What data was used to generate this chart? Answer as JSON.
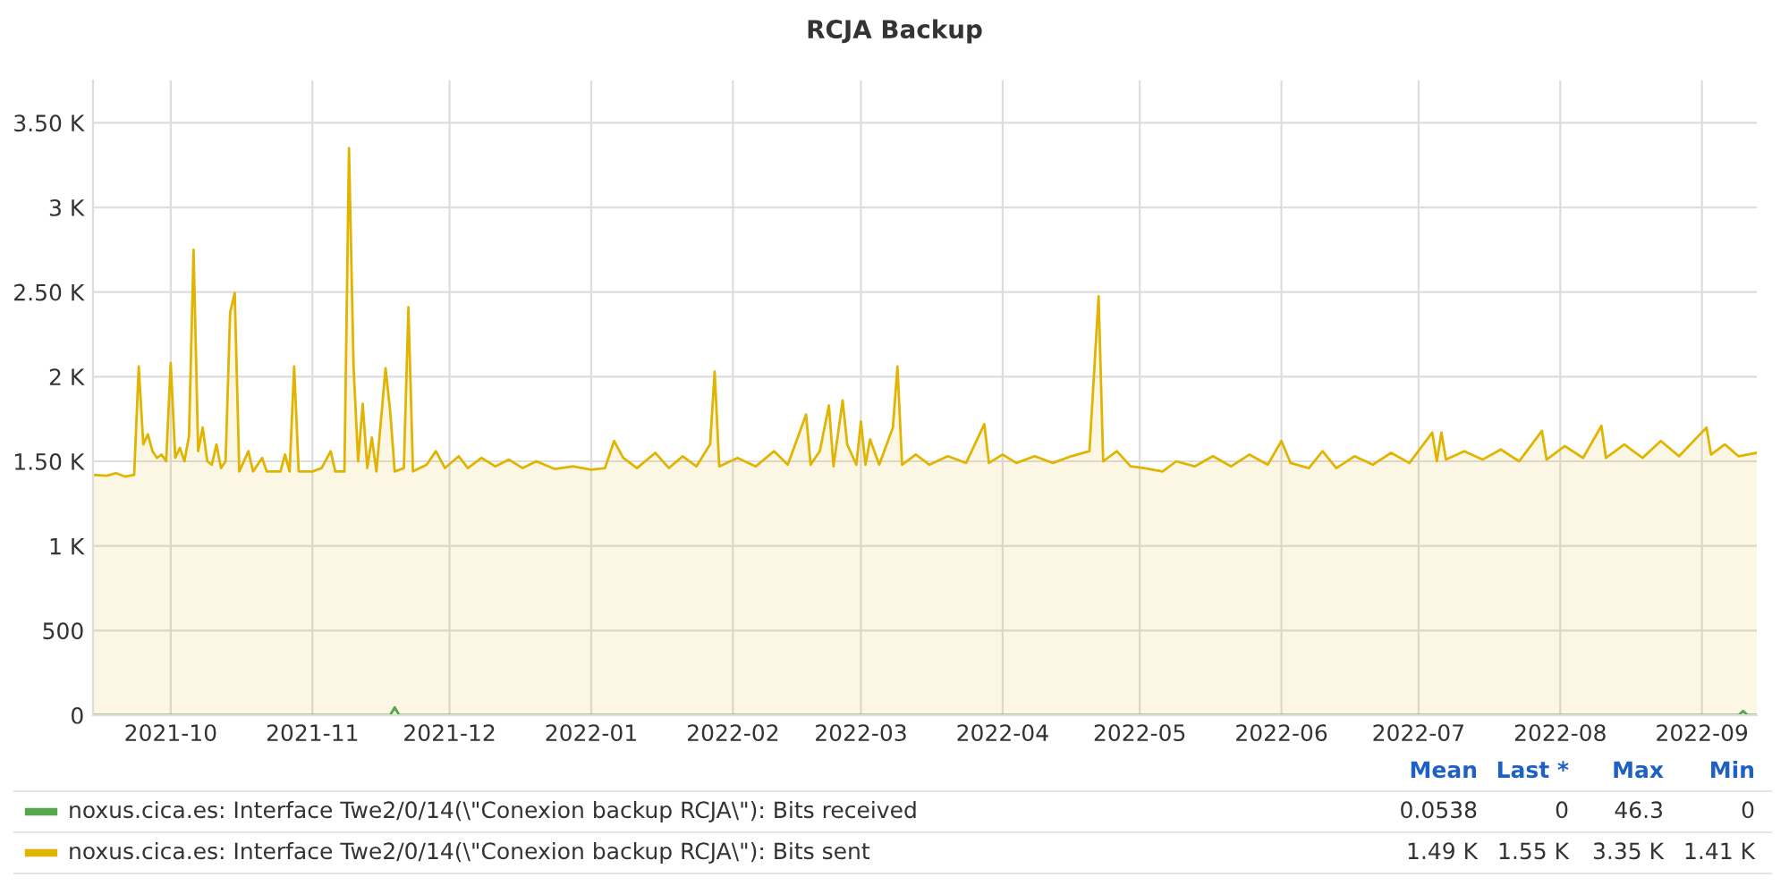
{
  "chart_data": {
    "type": "area",
    "title": "RCJA Backup",
    "xlim": [
      "2021-09-14",
      "2022-09-13"
    ],
    "xticks": [
      "2021-10",
      "2021-11",
      "2021-12",
      "2022-01",
      "2022-02",
      "2022-03",
      "2022-04",
      "2022-05",
      "2022-06",
      "2022-07",
      "2022-08",
      "2022-09"
    ],
    "ylim": [
      0,
      3750
    ],
    "yticks": [
      0,
      500,
      {
        "value": 1000,
        "label": "1 K"
      },
      {
        "value": 1500,
        "label": "1.50 K"
      },
      {
        "value": 2000,
        "label": "2 K"
      },
      {
        "value": 2500,
        "label": "2.50 K"
      },
      {
        "value": 3000,
        "label": "3 K"
      },
      {
        "value": 3500,
        "label": "3.50 K"
      }
    ],
    "grid": true,
    "legend": "bottom",
    "annotations": [
      "Mean",
      "Last *",
      "Max",
      "Min",
      "0.0538",
      "0",
      "46.3",
      "0",
      "1.49 K",
      "1.55 K",
      "3.35 K",
      "1.41 K"
    ],
    "series": [
      {
        "name": "noxus.cica.es: Interface Twe2/0/14(\\\"Conexion backup RCJA\\\"): Bits received",
        "color": "#56a64b",
        "x": [
          "2021-09-14",
          "2021-11-18",
          "2021-11-19",
          "2021-11-20",
          "2022-09-09",
          "2022-09-10",
          "2022-09-11",
          "2022-09-13"
        ],
        "values": [
          0,
          0,
          46.3,
          0,
          0,
          25,
          0,
          0
        ]
      },
      {
        "name": "noxus.cica.es: Interface Twe2/0/14(\\\"Conexion backup RCJA\\\"): Bits sent",
        "color": "#e0b400",
        "x": [
          "2021-09-14",
          "2021-09-17",
          "2021-09-19",
          "2021-09-21",
          "2021-09-23",
          "2021-09-24",
          "2021-09-25",
          "2021-09-26",
          "2021-09-27",
          "2021-09-28",
          "2021-09-29",
          "2021-09-30",
          "2021-10-01",
          "2021-10-02",
          "2021-10-03",
          "2021-10-04",
          "2021-10-05",
          "2021-10-06",
          "2021-10-07",
          "2021-10-08",
          "2021-10-09",
          "2021-10-10",
          "2021-10-11",
          "2021-10-12",
          "2021-10-13",
          "2021-10-14",
          "2021-10-15",
          "2021-10-16",
          "2021-10-18",
          "2021-10-19",
          "2021-10-21",
          "2021-10-22",
          "2021-10-25",
          "2021-10-26",
          "2021-10-27",
          "2021-10-28",
          "2021-10-29",
          "2021-11-01",
          "2021-11-03",
          "2021-11-05",
          "2021-11-06",
          "2021-11-08",
          "2021-11-09",
          "2021-11-10",
          "2021-11-11",
          "2021-11-12",
          "2021-11-13",
          "2021-11-14",
          "2021-11-15",
          "2021-11-17",
          "2021-11-18",
          "2021-11-19",
          "2021-11-21",
          "2021-11-22",
          "2021-11-23",
          "2021-11-26",
          "2021-11-28",
          "2021-11-30",
          "2021-12-03",
          "2021-12-05",
          "2021-12-08",
          "2021-12-11",
          "2021-12-14",
          "2021-12-17",
          "2021-12-20",
          "2021-12-24",
          "2021-12-28",
          "2022-01-01",
          "2022-01-04",
          "2022-01-06",
          "2022-01-08",
          "2022-01-11",
          "2022-01-15",
          "2022-01-18",
          "2022-01-21",
          "2022-01-24",
          "2022-01-27",
          "2022-01-28",
          "2022-01-29",
          "2022-02-02",
          "2022-02-06",
          "2022-02-10",
          "2022-02-13",
          "2022-02-17",
          "2022-02-18",
          "2022-02-20",
          "2022-02-22",
          "2022-02-23",
          "2022-02-25",
          "2022-02-26",
          "2022-02-28",
          "2022-03-01",
          "2022-03-02",
          "2022-03-03",
          "2022-03-05",
          "2022-03-08",
          "2022-03-09",
          "2022-03-10",
          "2022-03-13",
          "2022-03-16",
          "2022-03-20",
          "2022-03-24",
          "2022-03-28",
          "2022-03-29",
          "2022-04-01",
          "2022-04-04",
          "2022-04-08",
          "2022-04-12",
          "2022-04-16",
          "2022-04-20",
          "2022-04-22",
          "2022-04-23",
          "2022-04-26",
          "2022-04-29",
          "2022-05-02",
          "2022-05-06",
          "2022-05-09",
          "2022-05-13",
          "2022-05-17",
          "2022-05-21",
          "2022-05-25",
          "2022-05-29",
          "2022-06-01",
          "2022-06-03",
          "2022-06-07",
          "2022-06-10",
          "2022-06-13",
          "2022-06-17",
          "2022-06-21",
          "2022-06-25",
          "2022-06-29",
          "2022-07-04",
          "2022-07-05",
          "2022-07-06",
          "2022-07-07",
          "2022-07-11",
          "2022-07-15",
          "2022-07-19",
          "2022-07-23",
          "2022-07-28",
          "2022-07-29",
          "2022-08-02",
          "2022-08-06",
          "2022-08-10",
          "2022-08-11",
          "2022-08-15",
          "2022-08-19",
          "2022-08-23",
          "2022-08-27",
          "2022-09-02",
          "2022-09-03",
          "2022-09-06",
          "2022-09-09",
          "2022-09-13"
        ],
        "values": [
          1420,
          1415,
          1430,
          1410,
          1420,
          2060,
          1600,
          1660,
          1560,
          1520,
          1540,
          1500,
          2080,
          1520,
          1580,
          1500,
          1650,
          2750,
          1560,
          1700,
          1500,
          1480,
          1600,
          1460,
          1500,
          2380,
          2495,
          1440,
          1560,
          1440,
          1520,
          1440,
          1440,
          1540,
          1440,
          2060,
          1440,
          1440,
          1460,
          1560,
          1440,
          1440,
          3350,
          2060,
          1500,
          1840,
          1460,
          1640,
          1440,
          2050,
          1800,
          1440,
          1460,
          2410,
          1440,
          1480,
          1560,
          1460,
          1530,
          1460,
          1520,
          1470,
          1510,
          1460,
          1500,
          1455,
          1470,
          1450,
          1460,
          1620,
          1520,
          1460,
          1550,
          1460,
          1530,
          1470,
          1600,
          2030,
          1470,
          1520,
          1470,
          1560,
          1480,
          1776,
          1480,
          1560,
          1830,
          1470,
          1860,
          1600,
          1480,
          1735,
          1480,
          1630,
          1480,
          1700,
          2060,
          1480,
          1540,
          1480,
          1530,
          1490,
          1720,
          1490,
          1540,
          1490,
          1530,
          1490,
          1530,
          1560,
          2475,
          1500,
          1560,
          1470,
          1460,
          1440,
          1500,
          1470,
          1530,
          1470,
          1540,
          1480,
          1620,
          1490,
          1460,
          1560,
          1460,
          1530,
          1480,
          1550,
          1490,
          1670,
          1500,
          1670,
          1510,
          1560,
          1510,
          1570,
          1500,
          1680,
          1510,
          1590,
          1520,
          1710,
          1520,
          1600,
          1520,
          1620,
          1530,
          1700,
          1540,
          1600,
          1530,
          1550
        ]
      }
    ]
  }
}
